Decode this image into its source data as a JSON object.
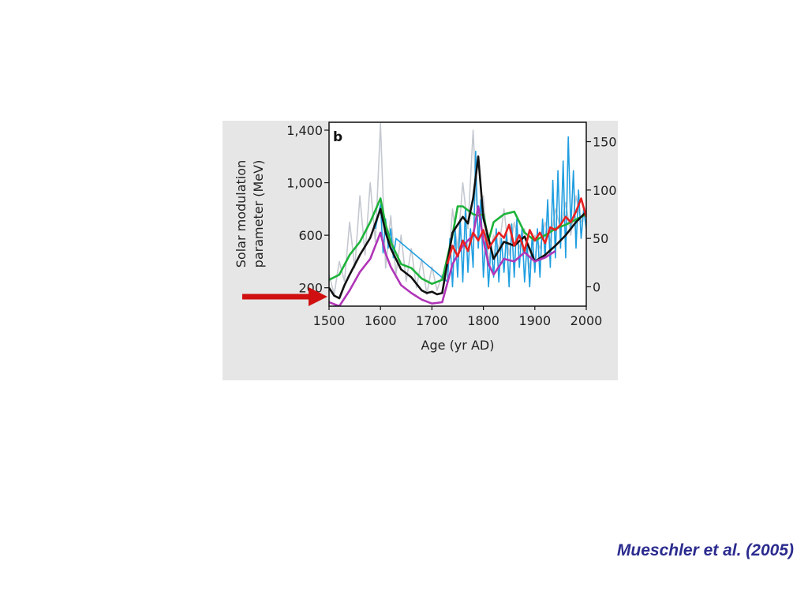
{
  "slide": {
    "citation": "Mueschler et al. (2005)"
  },
  "colors": {
    "panel_bg": "#e6e6e6",
    "arrow": "#d01010",
    "citation": "#2b2b8f"
  },
  "chart_data": {
    "type": "line",
    "panel_label": "b",
    "xlabel": "Age (yr AD)",
    "ylabel_left": [
      "Solar modulation",
      "parameter (MeV)"
    ],
    "ylabel_right": "",
    "xlim": [
      1500,
      2000
    ],
    "ylim_left": [
      60,
      1460
    ],
    "ylim_right": [
      -20,
      170
    ],
    "x_ticks": [
      1500,
      1600,
      1700,
      1800,
      1900,
      2000
    ],
    "y_ticks_left": [
      200,
      600,
      1000,
      1400
    ],
    "y_tick_labels_left": [
      "200",
      "600",
      "1,000",
      "1,400"
    ],
    "y_ticks_right": [
      0,
      50,
      100,
      150
    ],
    "grid": false,
    "annotations": [
      {
        "type": "arrow",
        "color": "red",
        "points_to_x": 1500,
        "points_to_y_left": 120
      }
    ],
    "series": [
      {
        "axis": "left",
        "color": "#c4c8d0",
        "style": "noisy-proxy",
        "x": [
          1500,
          1510,
          1520,
          1530,
          1540,
          1550,
          1560,
          1570,
          1580,
          1590,
          1600,
          1610,
          1620,
          1630,
          1640,
          1650,
          1660,
          1670,
          1680,
          1690,
          1700,
          1710,
          1720,
          1730,
          1740,
          1750,
          1760,
          1770,
          1780,
          1790,
          1800,
          1810,
          1820,
          1830,
          1840,
          1850,
          1860,
          1870,
          1880,
          1890,
          1900,
          1910,
          1920,
          1930,
          1940,
          1950,
          1960,
          1970,
          1980,
          1990,
          2000
        ],
        "y": [
          300,
          150,
          400,
          250,
          700,
          350,
          900,
          450,
          1000,
          550,
          1450,
          350,
          750,
          300,
          600,
          250,
          500,
          200,
          420,
          150,
          360,
          180,
          300,
          250,
          800,
          500,
          1000,
          650,
          1400,
          600,
          900,
          400,
          600,
          500,
          800,
          450,
          700,
          500,
          650,
          350,
          600,
          500,
          700,
          550,
          800,
          650,
          850,
          600,
          900,
          700,
          820
        ]
      },
      {
        "axis": "right",
        "color": "#1f9ee0",
        "style": "noisy-proxy",
        "x": [
          1590,
          1600,
          1605,
          1610,
          1615,
          1620,
          1625,
          1630,
          1730,
          1735,
          1740,
          1745,
          1750,
          1755,
          1760,
          1765,
          1770,
          1775,
          1780,
          1785,
          1790,
          1795,
          1800,
          1805,
          1810,
          1815,
          1820,
          1825,
          1830,
          1835,
          1840,
          1845,
          1850,
          1855,
          1860,
          1865,
          1870,
          1875,
          1880,
          1885,
          1890,
          1895,
          1900,
          1905,
          1910,
          1915,
          1920,
          1925,
          1930,
          1935,
          1940,
          1945,
          1950,
          1955,
          1960,
          1965,
          1970,
          1975,
          1980,
          1985,
          1990,
          1995,
          2000
        ],
        "y": [
          60,
          85,
          35,
          70,
          40,
          60,
          30,
          50,
          5,
          50,
          0,
          60,
          10,
          70,
          5,
          80,
          15,
          60,
          20,
          140,
          40,
          90,
          10,
          55,
          0,
          45,
          10,
          60,
          5,
          50,
          15,
          55,
          0,
          65,
          10,
          70,
          20,
          60,
          5,
          45,
          0,
          55,
          15,
          60,
          10,
          70,
          30,
          90,
          20,
          110,
          30,
          120,
          40,
          130,
          30,
          155,
          60,
          120,
          40,
          100,
          50,
          80,
          60
        ]
      },
      {
        "name": "",
        "axis": "left",
        "color": "#1db33a",
        "x": [
          1500,
          1520,
          1540,
          1560,
          1580,
          1600,
          1610,
          1620,
          1640,
          1660,
          1680,
          1700,
          1720,
          1740,
          1750,
          1760,
          1780,
          1790,
          1800,
          1810,
          1820,
          1840,
          1860,
          1880,
          1900,
          1920,
          1940,
          1960,
          1980,
          2000
        ],
        "y": [
          260,
          300,
          450,
          550,
          700,
          880,
          680,
          550,
          380,
          350,
          270,
          230,
          260,
          600,
          820,
          820,
          760,
          750,
          760,
          560,
          700,
          760,
          780,
          620,
          560,
          600,
          650,
          680,
          720,
          760
        ]
      },
      {
        "name": "",
        "axis": "left",
        "color": "#111111",
        "x": [
          1500,
          1510,
          1520,
          1530,
          1540,
          1560,
          1580,
          1600,
          1610,
          1620,
          1640,
          1660,
          1680,
          1690,
          1700,
          1710,
          1720,
          1740,
          1760,
          1770,
          1780,
          1790,
          1800,
          1820,
          1840,
          1860,
          1880,
          1900,
          1920,
          1940,
          1960,
          1980,
          2000
        ],
        "y": [
          200,
          140,
          120,
          220,
          300,
          450,
          580,
          800,
          620,
          500,
          340,
          280,
          180,
          160,
          170,
          150,
          160,
          620,
          740,
          690,
          880,
          1200,
          730,
          420,
          550,
          520,
          590,
          400,
          450,
          520,
          600,
          700,
          780
        ]
      },
      {
        "name": "",
        "axis": "left",
        "color": "#b035b8",
        "x": [
          1500,
          1520,
          1540,
          1560,
          1580,
          1600,
          1610,
          1620,
          1640,
          1660,
          1680,
          1700,
          1720,
          1740,
          1760,
          1780,
          1790,
          1800,
          1810,
          1820,
          1840,
          1860,
          1880,
          1900,
          1920,
          1940
        ],
        "y": [
          90,
          60,
          180,
          320,
          420,
          620,
          460,
          360,
          220,
          160,
          110,
          80,
          90,
          380,
          520,
          600,
          820,
          560,
          380,
          300,
          420,
          400,
          470,
          400,
          430,
          480
        ]
      },
      {
        "name": "",
        "axis": "left",
        "color": "#e82020",
        "x": [
          1730,
          1740,
          1750,
          1760,
          1770,
          1780,
          1790,
          1800,
          1810,
          1820,
          1830,
          1840,
          1850,
          1860,
          1870,
          1880,
          1890,
          1900,
          1910,
          1920,
          1930,
          1940,
          1950,
          1960,
          1970,
          1980,
          1990,
          2000
        ],
        "y": [
          380,
          520,
          440,
          560,
          480,
          620,
          560,
          640,
          500,
          560,
          620,
          580,
          680,
          520,
          600,
          480,
          640,
          560,
          620,
          540,
          660,
          640,
          680,
          740,
          700,
          780,
          880,
          740
        ]
      }
    ]
  }
}
